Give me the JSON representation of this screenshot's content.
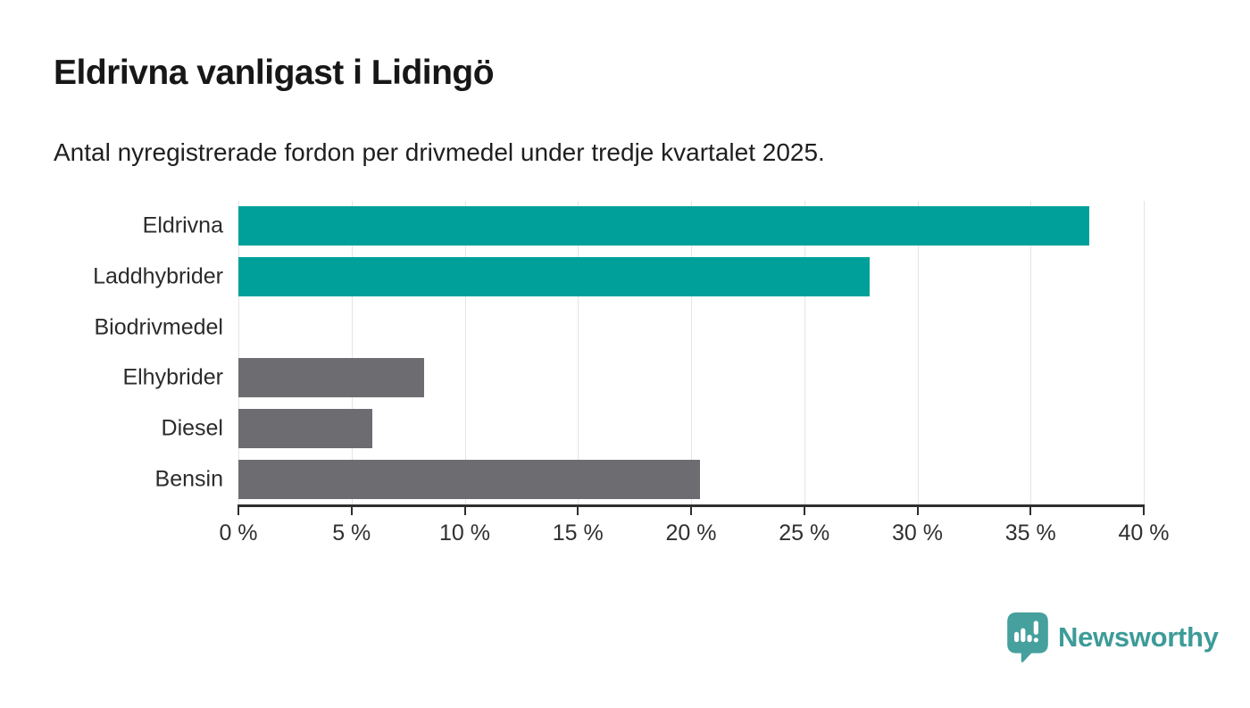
{
  "header": {
    "title": "Eldrivna vanligast i Lidingö",
    "subtitle": "Antal nyregistrerade fordon per drivmedel under tredje kvartalet 2025."
  },
  "chart_data": {
    "type": "bar",
    "orientation": "horizontal",
    "title": "Eldrivna vanligast i Lidingö",
    "subtitle": "Antal nyregistrerade fordon per drivmedel under tredje kvartalet 2025.",
    "categories": [
      "Eldrivna",
      "Laddhybrider",
      "Biodrivmedel",
      "Elhybrider",
      "Diesel",
      "Bensin"
    ],
    "values": [
      37.6,
      27.9,
      0,
      8.2,
      5.9,
      20.4
    ],
    "unit": "%",
    "xlabel": "",
    "ylabel": "",
    "xlim": [
      0,
      40
    ],
    "x_ticks": [
      0,
      5,
      10,
      15,
      20,
      25,
      30,
      35,
      40
    ],
    "x_tick_labels": [
      "0 %",
      "5 %",
      "10 %",
      "15 %",
      "20 %",
      "25 %",
      "30 %",
      "35 %",
      "40 %"
    ],
    "bar_colors": [
      "#00a09a",
      "#00a09a",
      "#6c6c71",
      "#6c6c71",
      "#6c6c71",
      "#6c6c71"
    ],
    "grid": "vertical",
    "legend": "none"
  },
  "colors": {
    "teal": "#00a09a",
    "gray": "#6c6c71",
    "gridline": "#e4e4e4",
    "axis": "#2e2e2e",
    "logo_icon": "#46a09d",
    "logo_text": "#3d9b98",
    "background": "#ffffff"
  },
  "logo": {
    "text": "Newsworthy"
  }
}
